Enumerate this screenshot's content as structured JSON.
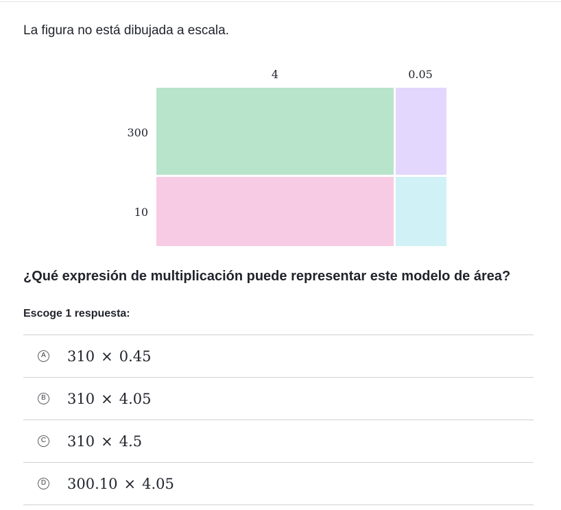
{
  "note": "La figura no está dibujada a escala.",
  "area_model": {
    "column_labels": [
      "4",
      "0.05"
    ],
    "row_labels": [
      "300",
      "10"
    ],
    "colors": {
      "top_left": "#b8e4cb",
      "top_right": "#e3d7fd",
      "bottom_left": "#f8cbe4",
      "bottom_right": "#d0f1f5"
    }
  },
  "question": "¿Qué expresión de multiplicación puede representar este modelo de área?",
  "instruction": "Escoge 1 respuesta:",
  "choices": [
    {
      "letter": "A",
      "left": "310",
      "op": "×",
      "right": "0.45"
    },
    {
      "letter": "B",
      "left": "310",
      "op": "×",
      "right": "4.05"
    },
    {
      "letter": "C",
      "left": "310",
      "op": "×",
      "right": "4.5"
    },
    {
      "letter": "D",
      "left": "300.10",
      "op": "×",
      "right": "4.05"
    }
  ]
}
